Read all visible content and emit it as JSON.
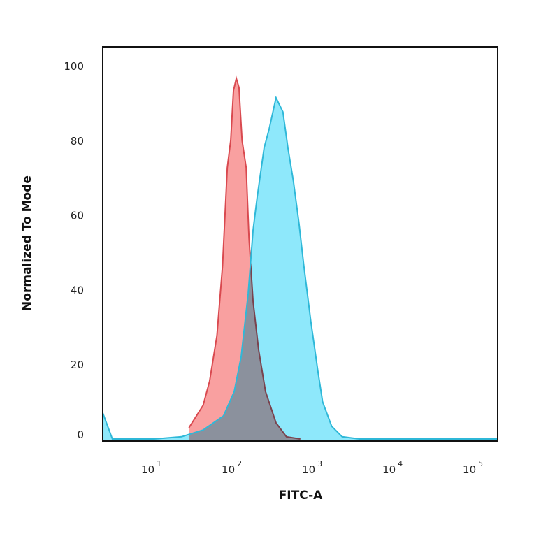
{
  "chart_data": {
    "type": "area",
    "title": "",
    "xlabel": "FITC-A",
    "ylabel": "Normalized To Mode",
    "xscale": "log",
    "xlim": [
      2.2,
      180000
    ],
    "ylim": [
      0,
      105
    ],
    "grid": false,
    "legend": "none",
    "x_ticks": [
      {
        "base": "10",
        "exp": "1",
        "value": 10
      },
      {
        "base": "10",
        "exp": "2",
        "value": 100
      },
      {
        "base": "10",
        "exp": "3",
        "value": 1000
      },
      {
        "base": "10",
        "exp": "4",
        "value": 10000
      },
      {
        "base": "10",
        "exp": "5",
        "value": 100000
      }
    ],
    "y_ticks": [
      "0",
      "20",
      "40",
      "60",
      "80",
      "100"
    ],
    "series": [
      {
        "color": "#f9a0a0",
        "stroke": "#d9494f",
        "x": [
          26,
          39,
          47,
          58,
          68,
          78,
          86,
          93,
          101,
          109,
          119,
          134,
          145,
          163,
          191,
          233,
          315,
          424,
          632
        ],
        "y": [
          3,
          9,
          15.5,
          27.7,
          46.4,
          72.7,
          80,
          93.3,
          96.6,
          94.2,
          80,
          72.7,
          53.9,
          37,
          24,
          12.7,
          4.3,
          0.6,
          0
        ]
      },
      {
        "color": "#8ee8fb",
        "stroke": "#2fb8d8",
        "x": [
          2.2,
          2.9,
          9.6,
          21,
          39,
          70,
          95,
          116,
          142,
          163,
          184,
          224,
          258,
          315,
          348,
          384,
          442,
          518,
          608,
          698,
          853,
          1040,
          1196,
          1550,
          2090,
          3440,
          180000
        ],
        "y": [
          7,
          0,
          0,
          0.6,
          2.4,
          6.2,
          12.7,
          22,
          39,
          55.8,
          65,
          78,
          83,
          91.4,
          89.5,
          87.6,
          78,
          69,
          57.7,
          46.4,
          31.5,
          18.4,
          9.9,
          3.4,
          0.6,
          0,
          0
        ]
      }
    ]
  }
}
